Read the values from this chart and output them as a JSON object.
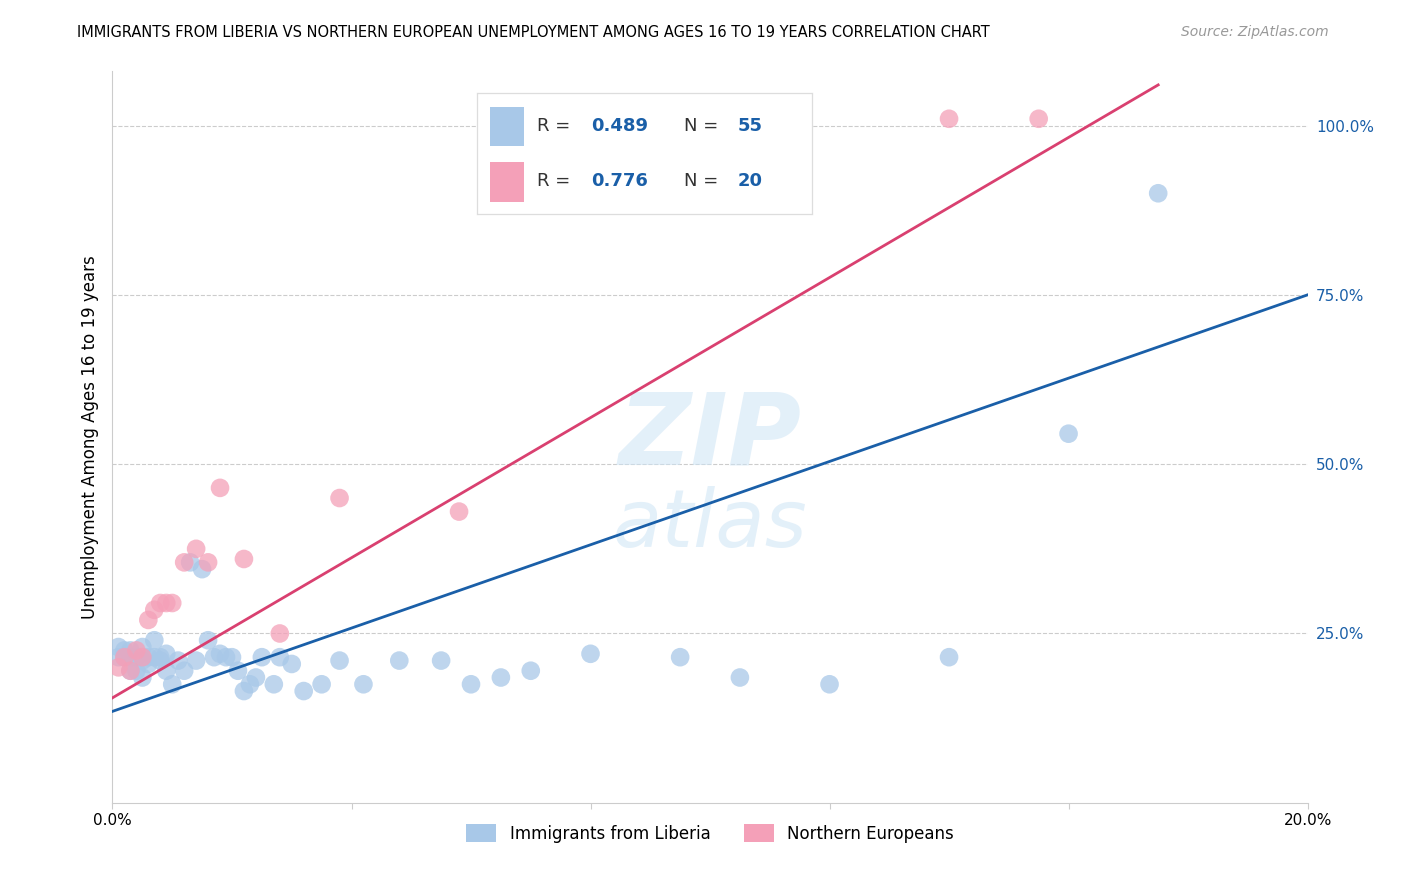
{
  "title": "IMMIGRANTS FROM LIBERIA VS NORTHERN EUROPEAN UNEMPLOYMENT AMONG AGES 16 TO 19 YEARS CORRELATION CHART",
  "source": "Source: ZipAtlas.com",
  "ylabel": "Unemployment Among Ages 16 to 19 years",
  "xmin": 0.0,
  "xmax": 0.2,
  "ymin": 0.0,
  "ymax": 1.08,
  "legend_labels": [
    "Immigrants from Liberia",
    "Northern Europeans"
  ],
  "blue_R": "0.489",
  "blue_N": "55",
  "pink_R": "0.776",
  "pink_N": "20",
  "blue_color": "#a8c8e8",
  "pink_color": "#f4a0b8",
  "blue_line_color": "#1a5fa8",
  "pink_line_color": "#d94070",
  "blue_line_x0": 0.0,
  "blue_line_y0": 0.135,
  "blue_line_x1": 0.2,
  "blue_line_y1": 0.75,
  "pink_line_x0": 0.0,
  "pink_line_y0": 0.155,
  "pink_line_x1": 0.175,
  "pink_line_y1": 1.06,
  "blue_points_x": [
    0.001,
    0.001,
    0.002,
    0.002,
    0.003,
    0.003,
    0.003,
    0.004,
    0.004,
    0.005,
    0.005,
    0.005,
    0.006,
    0.006,
    0.007,
    0.007,
    0.008,
    0.008,
    0.009,
    0.009,
    0.01,
    0.011,
    0.012,
    0.013,
    0.014,
    0.015,
    0.016,
    0.017,
    0.018,
    0.019,
    0.02,
    0.021,
    0.022,
    0.023,
    0.024,
    0.025,
    0.027,
    0.028,
    0.03,
    0.032,
    0.035,
    0.038,
    0.042,
    0.048,
    0.055,
    0.06,
    0.065,
    0.07,
    0.08,
    0.095,
    0.105,
    0.12,
    0.14,
    0.16,
    0.175
  ],
  "blue_points_y": [
    0.215,
    0.23,
    0.215,
    0.225,
    0.195,
    0.215,
    0.225,
    0.215,
    0.195,
    0.21,
    0.23,
    0.185,
    0.215,
    0.205,
    0.215,
    0.24,
    0.21,
    0.215,
    0.195,
    0.22,
    0.175,
    0.21,
    0.195,
    0.355,
    0.21,
    0.345,
    0.24,
    0.215,
    0.22,
    0.215,
    0.215,
    0.195,
    0.165,
    0.175,
    0.185,
    0.215,
    0.175,
    0.215,
    0.205,
    0.165,
    0.175,
    0.21,
    0.175,
    0.21,
    0.21,
    0.175,
    0.185,
    0.195,
    0.22,
    0.215,
    0.185,
    0.175,
    0.215,
    0.545,
    0.9
  ],
  "pink_points_x": [
    0.001,
    0.002,
    0.003,
    0.004,
    0.005,
    0.006,
    0.007,
    0.008,
    0.009,
    0.01,
    0.012,
    0.014,
    0.016,
    0.018,
    0.022,
    0.028,
    0.038,
    0.058,
    0.14,
    0.155
  ],
  "pink_points_y": [
    0.2,
    0.215,
    0.195,
    0.225,
    0.215,
    0.27,
    0.285,
    0.295,
    0.295,
    0.295,
    0.355,
    0.375,
    0.355,
    0.465,
    0.36,
    0.25,
    0.45,
    0.43,
    1.01,
    1.01
  ]
}
